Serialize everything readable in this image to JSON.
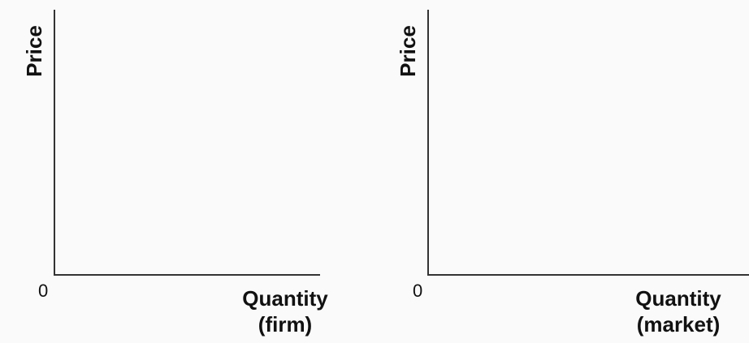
{
  "firm_graph": {
    "y_label": "Price",
    "origin": "0",
    "x_label_line1": "Quantity",
    "x_label_line2": "(firm)"
  },
  "market_graph": {
    "y_label": "Price",
    "origin": "0",
    "x_label_line1": "Quantity",
    "x_label_line2": "(market)"
  }
}
